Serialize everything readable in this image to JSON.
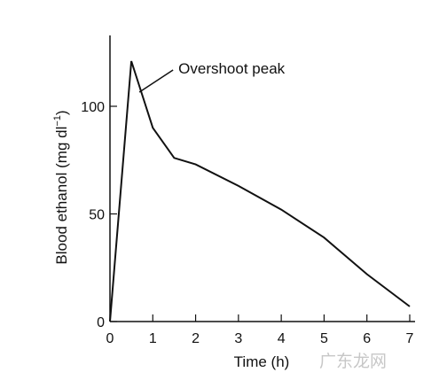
{
  "chart_data": {
    "type": "line",
    "title": "",
    "xlabel": "Time (h)",
    "ylabel": "Blood ethanol (mg dl",
    "ylabel_superscript": "−1",
    "ylabel_suffix": ")",
    "xlim": [
      0,
      7
    ],
    "ylim": [
      0,
      125
    ],
    "x_ticks": [
      0,
      1,
      2,
      3,
      4,
      5,
      6,
      7
    ],
    "x_tick_labels": [
      "0",
      "1",
      "2",
      "3",
      "4",
      "5",
      "6",
      "7"
    ],
    "y_ticks": [
      0,
      50,
      100
    ],
    "y_tick_labels": [
      "0",
      "50",
      "100"
    ],
    "grid": false,
    "series": [
      {
        "x": [
          0,
          0.5,
          1.0,
          1.5,
          2.0,
          3.0,
          4.0,
          5.0,
          6.0,
          7.0
        ],
        "y": [
          0,
          121,
          90,
          76,
          73,
          63,
          52,
          39,
          22,
          7
        ],
        "color": "#111111"
      }
    ],
    "annotations": [
      {
        "text": "Overshoot peak",
        "x": 0.5,
        "y": 121
      }
    ]
  },
  "watermark": {
    "text": "广东龙网"
  }
}
